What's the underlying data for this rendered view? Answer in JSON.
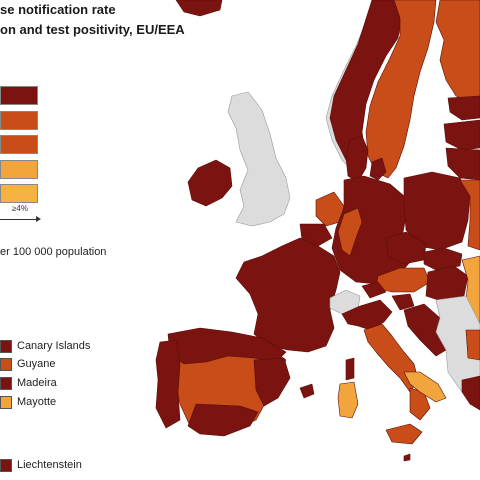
{
  "map": {
    "title_line1": "se notification rate",
    "title_line2": "on and test positivity, EU/EEA",
    "legend": {
      "category_colors": [
        "#7b1410",
        "#c0441a",
        "#c94d18",
        "#f2a53c",
        "#f4b340"
      ],
      "positivity_label": "≥4%",
      "population_label": "er 100 000 population"
    },
    "regions": [
      {
        "name": "Canary Islands",
        "color": "#7b1410"
      },
      {
        "name": "Guyane",
        "color": "#c94d18"
      },
      {
        "name": "Madeira",
        "color": "#7b1410"
      },
      {
        "name": "Mayotte",
        "color": "#f2a53c"
      },
      {
        "name": "Liechtenstein",
        "color": "#7b1410"
      }
    ],
    "colors": {
      "dark_red": "#7b1410",
      "orange_red": "#c94d18",
      "orange": "#d2591c",
      "light_orange": "#f2a53c",
      "grey_non_eu": "#dcdcdc",
      "sea": "#ffffff",
      "border": "#5a0c08"
    }
  }
}
